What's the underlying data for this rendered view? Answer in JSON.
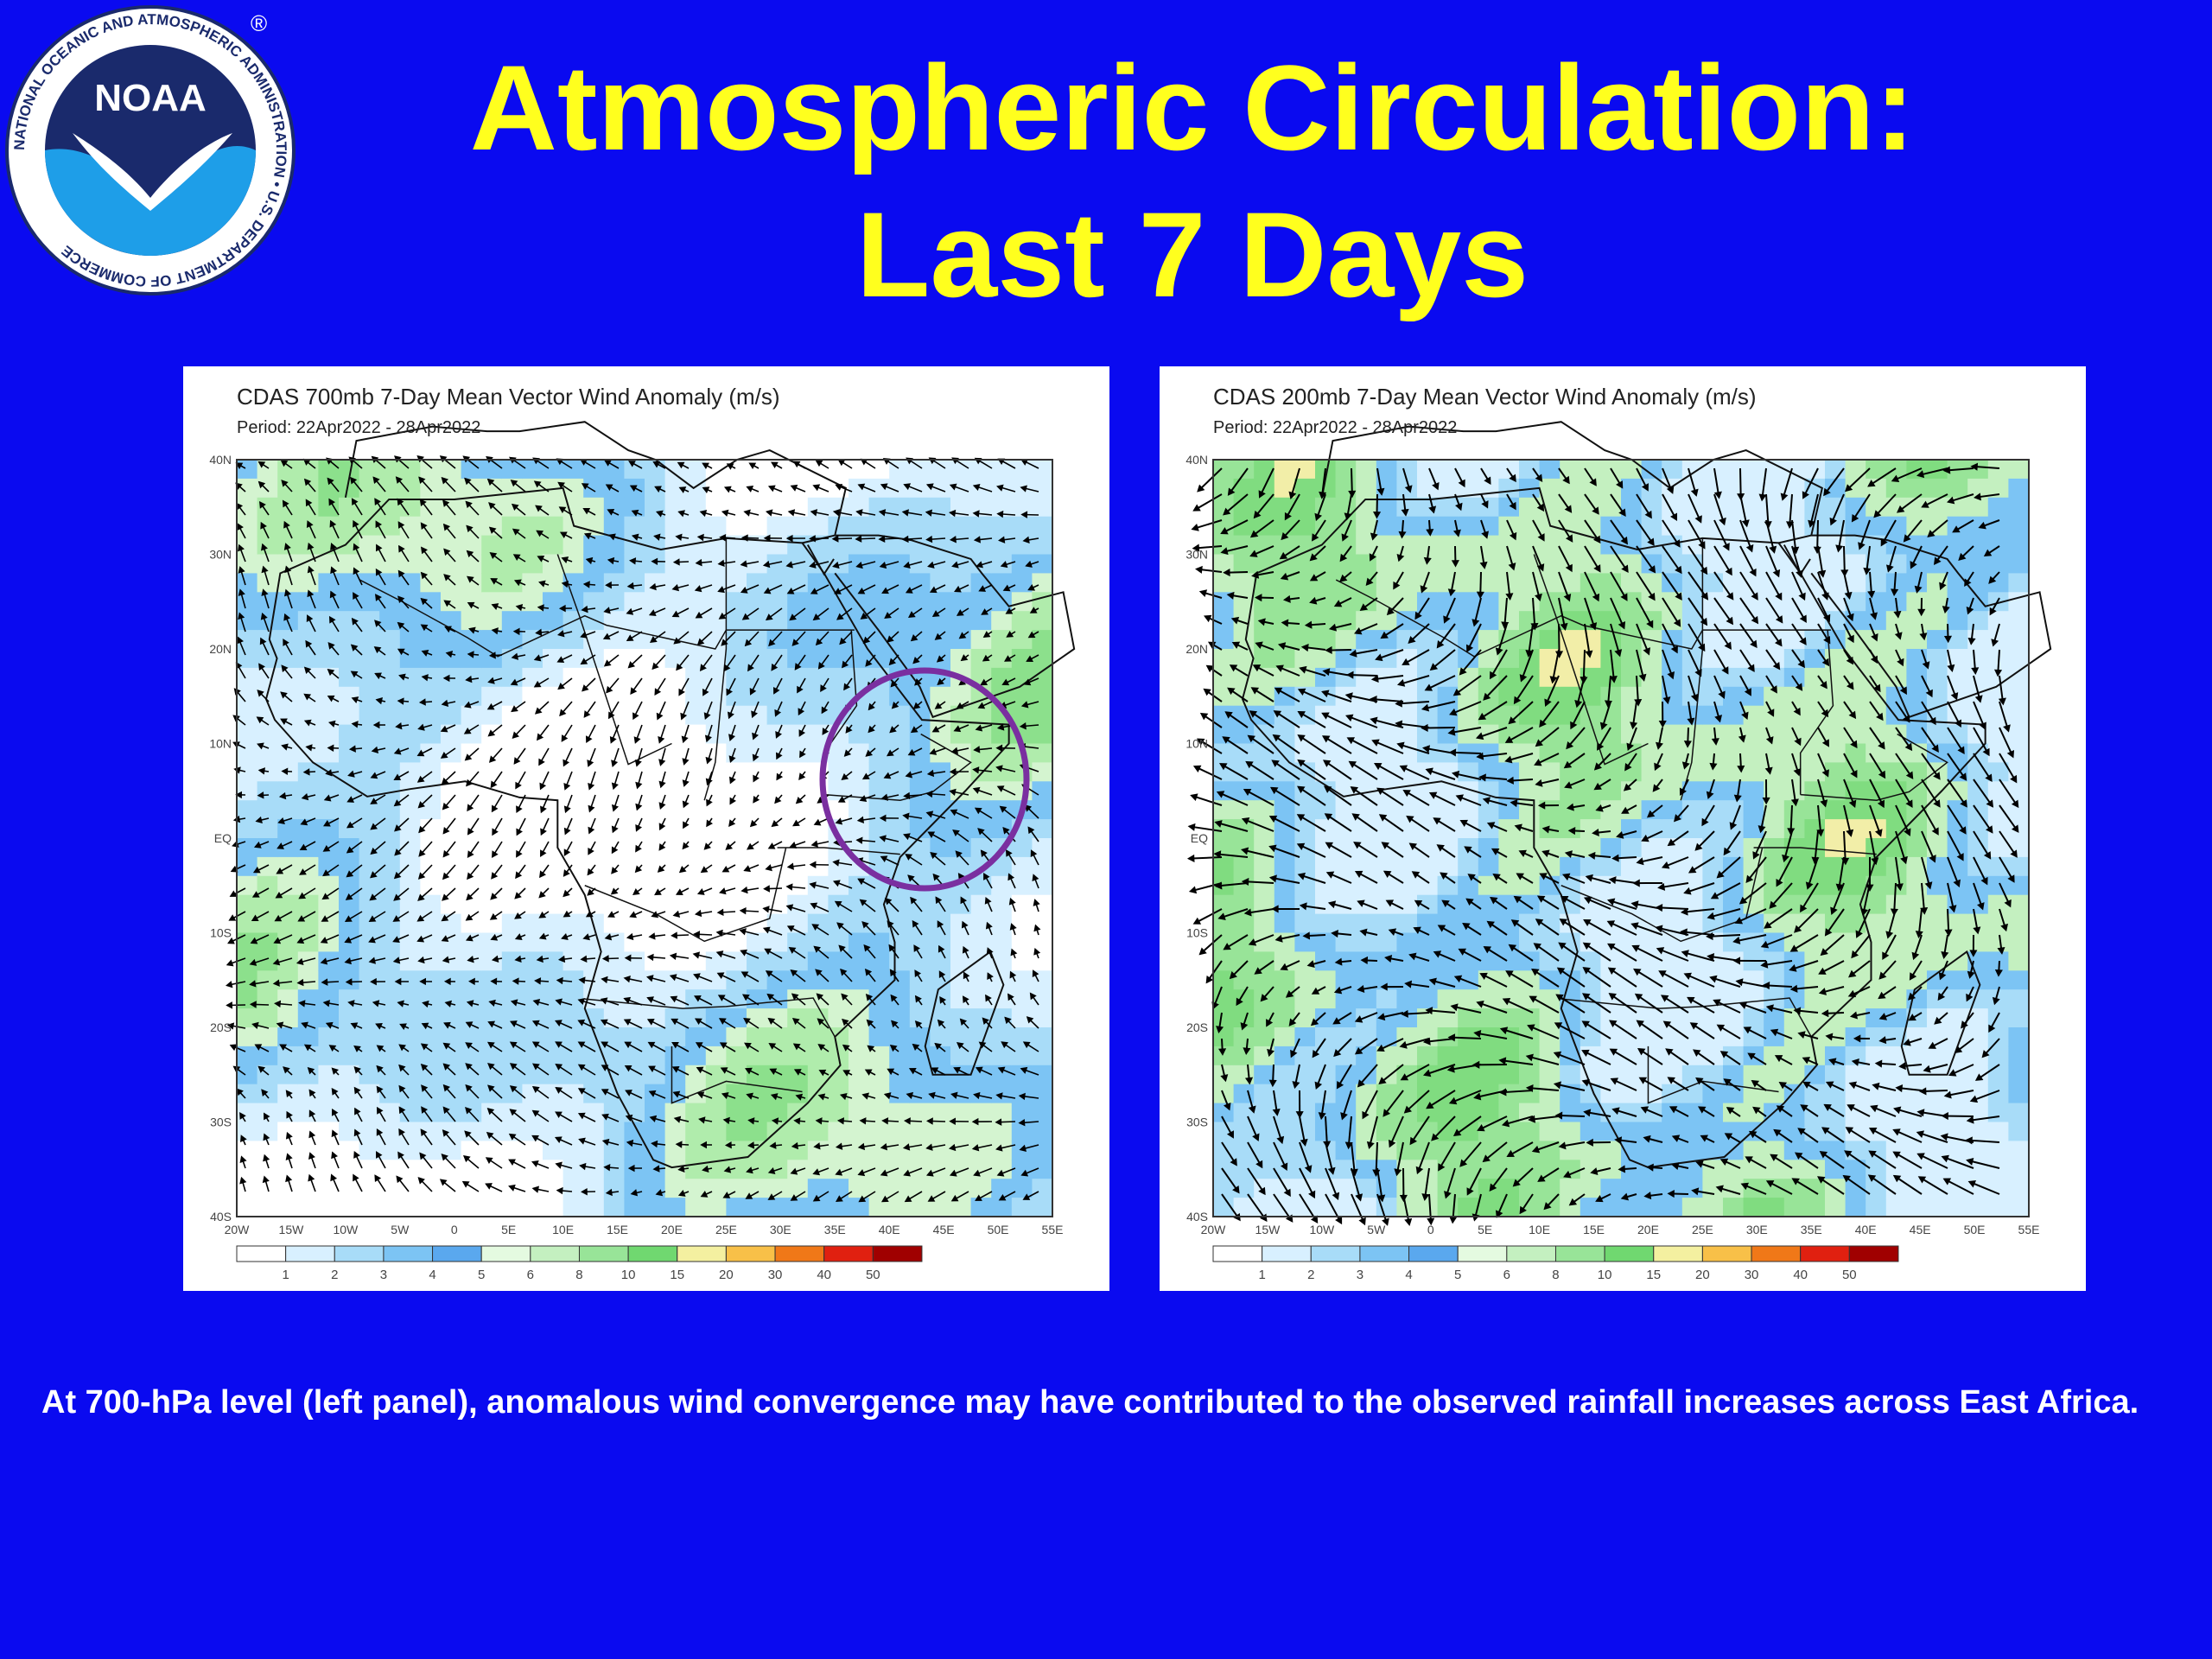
{
  "slide": {
    "title_line1": "Atmospheric Circulation:",
    "title_line2": "Last 7 Days",
    "caption": "At 700-hPa level (left panel), anomalous wind convergence may have contributed to the observed rainfall increases across East Africa."
  },
  "logo": {
    "text": "NOAA",
    "ring_text": "NATIONAL OCEANIC AND ATMOSPHERIC ADMINISTRATION • U.S. DEPARTMENT OF COMMERCE",
    "registered": "®"
  },
  "colors": {
    "background": "#0a0af0",
    "title": "#ffff1e",
    "caption": "#ffffff",
    "highlight_circle": "#7a2fa0"
  },
  "panels": [
    {
      "id": "left",
      "title": "CDAS 700mb 7-Day Mean Vector Wind Anomaly (m/s)",
      "period": "Period: 22Apr2022 - 28Apr2022",
      "highlight": "East Africa convergence region (circled)"
    },
    {
      "id": "right",
      "title": "CDAS 200mb 7-Day Mean Vector Wind Anomaly (m/s)",
      "period": "Period: 22Apr2022 - 28Apr2022"
    }
  ],
  "axes": {
    "lat_labels": [
      "40N",
      "30N",
      "20N",
      "10N",
      "EQ",
      "10S",
      "20S",
      "30S",
      "40S"
    ],
    "lon_labels": [
      "20W",
      "15W",
      "10W",
      "5W",
      "0",
      "5E",
      "10E",
      "15E",
      "20E",
      "25E",
      "30E",
      "35E",
      "40E",
      "45E",
      "50E",
      "55E"
    ]
  },
  "colorbar": {
    "labels": [
      "1",
      "2",
      "3",
      "4",
      "5",
      "6",
      "8",
      "10",
      "15",
      "20",
      "30",
      "40",
      "50"
    ],
    "colors": [
      "#ffffff",
      "#d8f0ff",
      "#a8dcf8",
      "#7cc4f4",
      "#5aa8ee",
      "#e4fae0",
      "#c4f0c0",
      "#98e498",
      "#70d870",
      "#f4f0a0",
      "#f8c048",
      "#f07818",
      "#e02010",
      "#a00000"
    ]
  }
}
